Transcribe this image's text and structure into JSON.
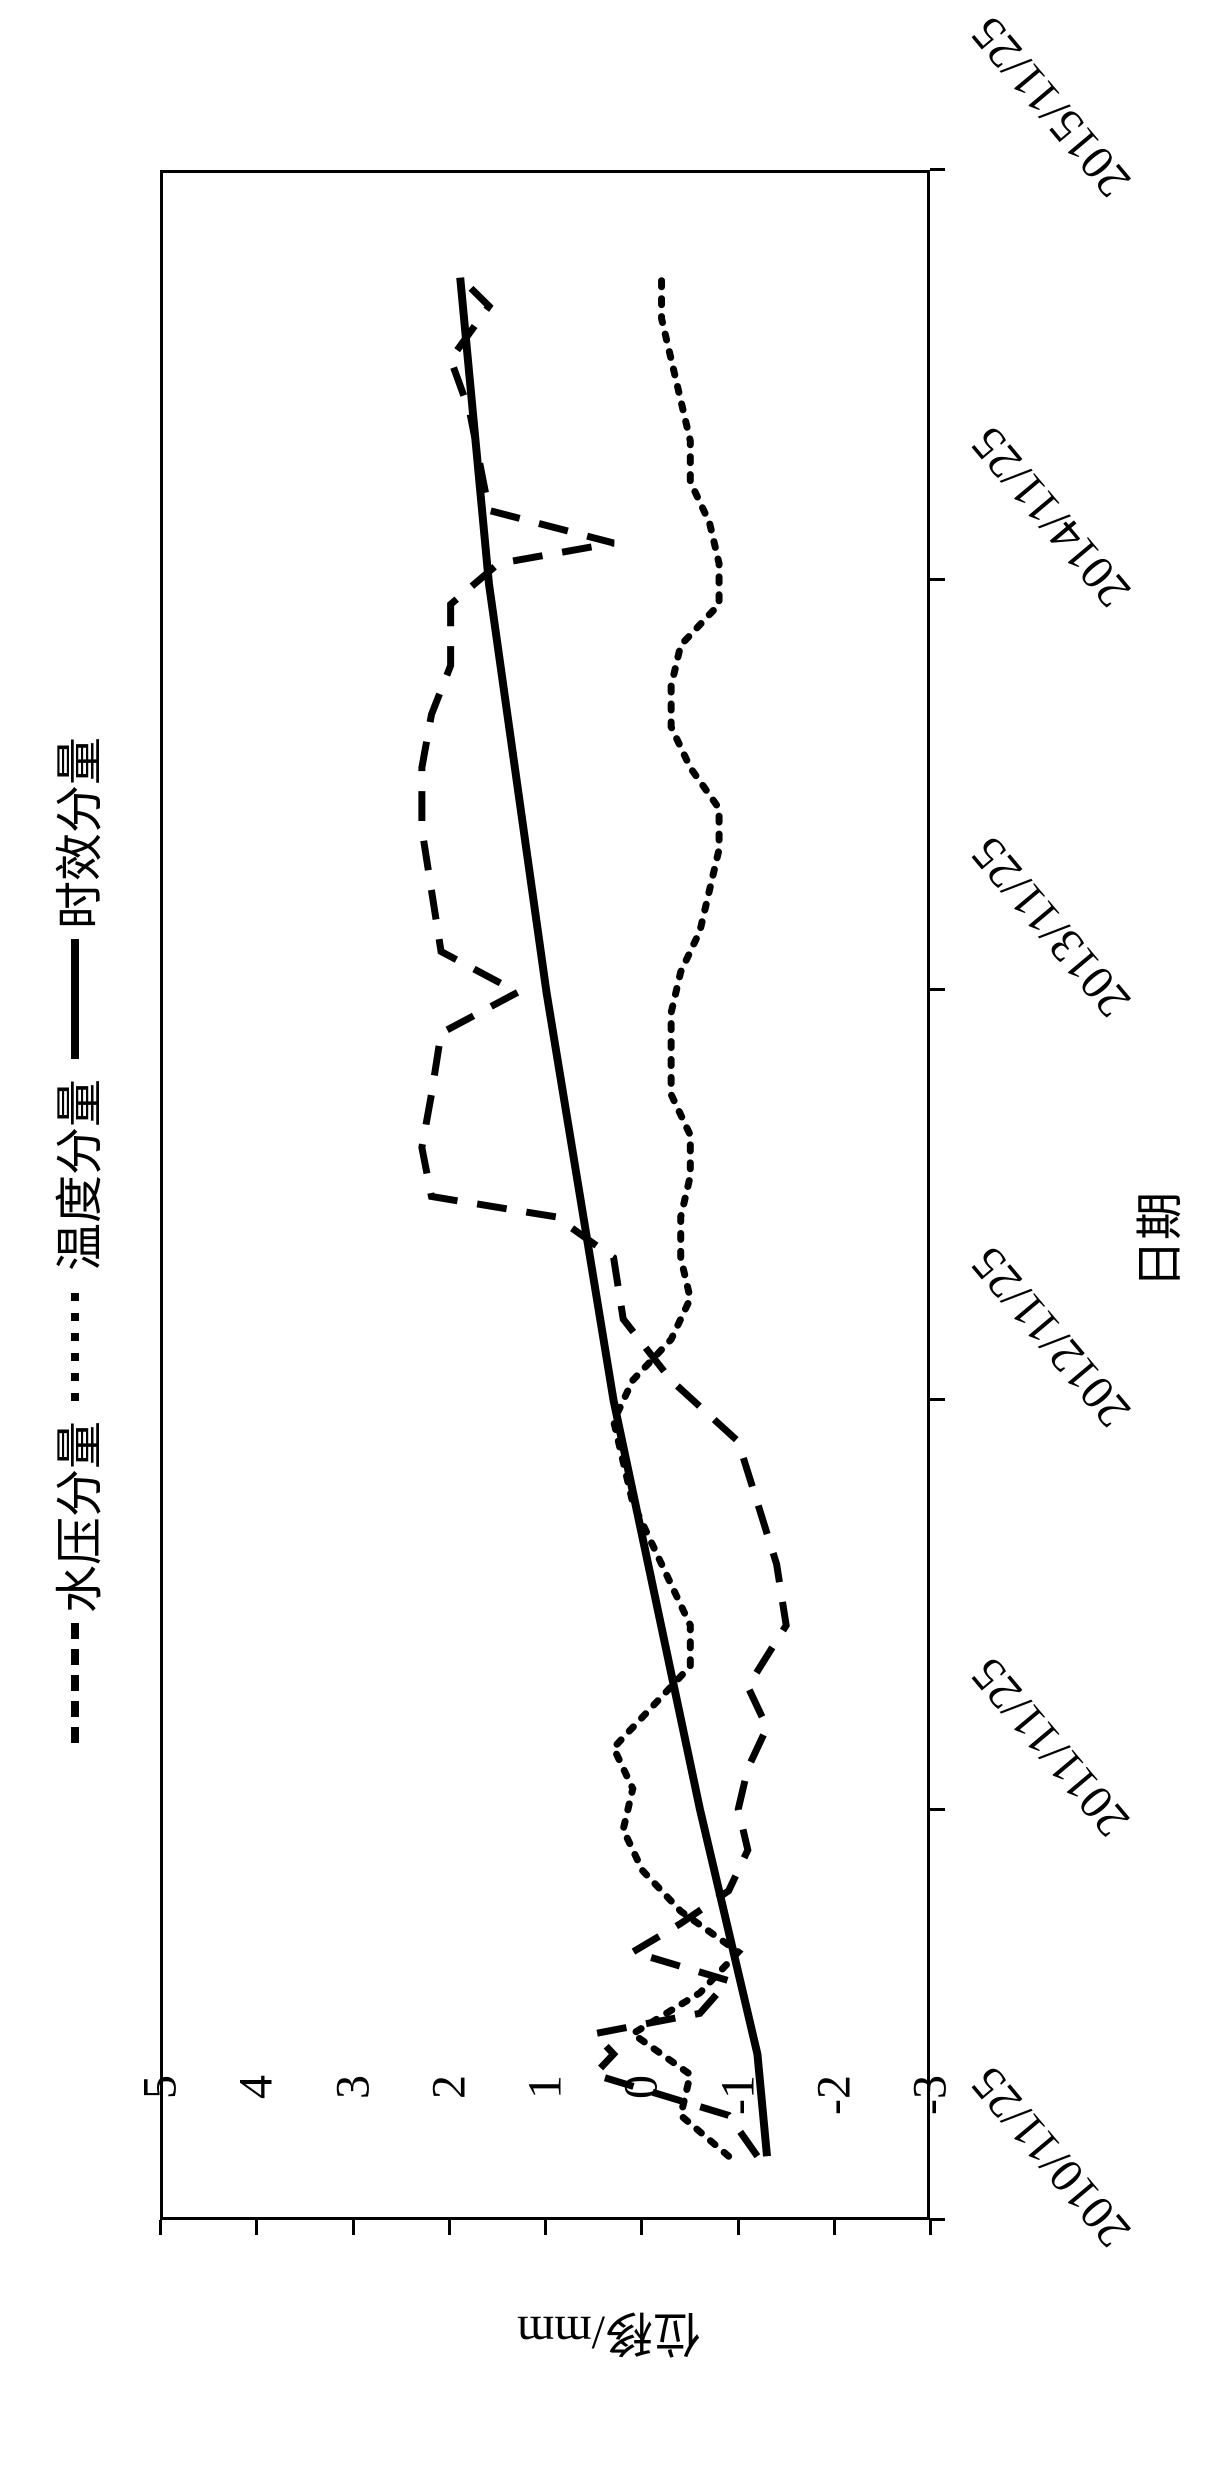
{
  "chart": {
    "type": "line",
    "background_color": "#ffffff",
    "line_color": "#000000",
    "y_axis": {
      "title": "位移/mm",
      "min": -3,
      "max": 5,
      "ticks": [
        -3,
        -2,
        -1,
        0,
        1,
        2,
        3,
        4,
        5
      ],
      "title_fontsize": 48,
      "tick_fontsize": 48
    },
    "x_axis": {
      "title": "日期",
      "ticks": [
        "2010/11/25",
        "2011/11/25",
        "2012/11/25",
        "2013/11/25",
        "2014/11/25",
        "2015/11/25"
      ],
      "tick_positions": [
        0,
        1,
        2,
        3,
        4,
        5
      ],
      "title_fontsize": 48,
      "tick_fontsize": 48
    },
    "series": [
      {
        "name": "水压分量",
        "style": "dashed",
        "line_width": 7,
        "dash_pattern": "30,20",
        "x": [
          0.15,
          0.25,
          0.35,
          0.4,
          0.45,
          0.5,
          0.58,
          0.65,
          0.72,
          0.8,
          0.9,
          1.0,
          1.1,
          1.2,
          1.3,
          1.45,
          1.6,
          1.75,
          1.9,
          2.05,
          2.2,
          2.35,
          2.45,
          2.5,
          2.62,
          2.75,
          2.9,
          3.0,
          3.1,
          3.25,
          3.4,
          3.55,
          3.68,
          3.8,
          3.95,
          4.05,
          4.1,
          4.18,
          4.3,
          4.42,
          4.55,
          4.68,
          4.75
        ],
        "y": [
          -1.2,
          -0.9,
          0.5,
          0.3,
          0.5,
          -0.6,
          -0.9,
          0.1,
          -0.4,
          -0.9,
          -1.1,
          -1.0,
          -1.1,
          -1.3,
          -1.1,
          -1.5,
          -1.4,
          -1.2,
          -1.0,
          -0.3,
          0.2,
          0.3,
          0.9,
          2.2,
          2.3,
          2.2,
          2.1,
          1.3,
          2.1,
          2.2,
          2.3,
          2.3,
          2.2,
          2.0,
          2.0,
          1.5,
          0.3,
          1.6,
          1.7,
          1.8,
          2.0,
          1.6,
          1.9
        ]
      },
      {
        "name": "温度分量",
        "style": "dotted",
        "line_width": 7,
        "dash_pattern": "6,12",
        "x": [
          0.15,
          0.25,
          0.35,
          0.45,
          0.55,
          0.65,
          0.75,
          0.85,
          0.95,
          1.05,
          1.15,
          1.25,
          1.35,
          1.45,
          1.55,
          1.65,
          1.75,
          1.85,
          1.95,
          2.05,
          2.15,
          2.25,
          2.35,
          2.45,
          2.55,
          2.65,
          2.75,
          2.85,
          2.95,
          3.05,
          3.15,
          3.25,
          3.35,
          3.45,
          3.55,
          3.65,
          3.75,
          3.85,
          3.95,
          4.05,
          4.15,
          4.25,
          4.35,
          4.45,
          4.55,
          4.65,
          4.75
        ],
        "y": [
          -0.9,
          -0.4,
          -0.5,
          0.1,
          -0.6,
          -1.0,
          -0.4,
          0.0,
          0.2,
          0.1,
          0.3,
          -0.1,
          -0.5,
          -0.5,
          -0.3,
          -0.1,
          0.1,
          0.2,
          0.3,
          0.1,
          -0.3,
          -0.5,
          -0.4,
          -0.4,
          -0.5,
          -0.5,
          -0.3,
          -0.3,
          -0.3,
          -0.4,
          -0.6,
          -0.7,
          -0.8,
          -0.8,
          -0.5,
          -0.3,
          -0.3,
          -0.4,
          -0.8,
          -0.8,
          -0.7,
          -0.5,
          -0.5,
          -0.4,
          -0.3,
          -0.2,
          -0.2
        ]
      },
      {
        "name": "时效分量",
        "style": "solid",
        "line_width": 8,
        "x": [
          0.15,
          0.4,
          1.0,
          2.0,
          3.0,
          4.0,
          4.75
        ],
        "y": [
          -1.3,
          -1.2,
          -0.6,
          0.3,
          1.0,
          1.6,
          1.9
        ]
      }
    ],
    "legend": {
      "items": [
        {
          "label": "水压分量",
          "style": "dashed"
        },
        {
          "label": "温度分量",
          "style": "dotted"
        },
        {
          "label": "时效分量",
          "style": "solid"
        }
      ],
      "fontsize": 48
    }
  }
}
